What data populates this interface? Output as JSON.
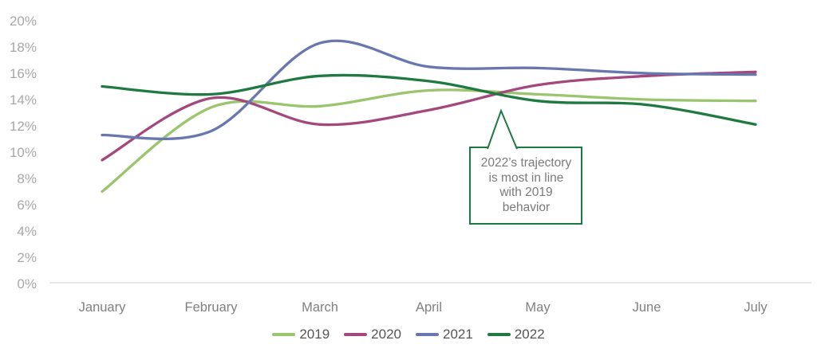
{
  "chart_data": {
    "type": "line",
    "title": "",
    "x_categories": [
      "January",
      "February",
      "March",
      "April",
      "May",
      "June",
      "July"
    ],
    "y_tick_labels": [
      "0%",
      "2%",
      "4%",
      "6%",
      "8%",
      "10%",
      "12%",
      "14%",
      "16%",
      "18%",
      "20%"
    ],
    "y_tick_values": [
      0,
      2,
      4,
      6,
      8,
      10,
      12,
      14,
      16,
      18,
      20
    ],
    "ylim": [
      0,
      20
    ],
    "y_unit": "%",
    "grid": "none",
    "legend_position": "bottom-center",
    "series": [
      {
        "name": "2019",
        "color": "#9bc46f",
        "values": [
          7.0,
          13.4,
          13.5,
          14.7,
          14.4,
          14.0,
          13.9
        ]
      },
      {
        "name": "2020",
        "color": "#a4477d",
        "values": [
          9.4,
          14.1,
          12.1,
          13.2,
          15.1,
          15.8,
          16.1
        ]
      },
      {
        "name": "2021",
        "color": "#6877ae",
        "values": [
          11.3,
          11.6,
          18.3,
          16.5,
          16.4,
          16.0,
          15.9
        ]
      },
      {
        "name": "2022",
        "color": "#1e7a41",
        "values": [
          15.0,
          14.4,
          15.8,
          15.4,
          13.9,
          13.6,
          12.1
        ]
      }
    ],
    "annotation": {
      "text": "2022’s trajectory\nis most in line\nwith 2019\nbehavior",
      "border_color": "#1e7843",
      "text_color": "#7a7a7a",
      "points_to_series": "2022",
      "points_to_month": "May"
    }
  },
  "colors": {
    "background": "#ffffff",
    "axis_line": "#d9d9d9",
    "y_tick_label": "#a8a8a8",
    "x_tick_label": "#7f7f7f",
    "legend_label": "#555555"
  }
}
